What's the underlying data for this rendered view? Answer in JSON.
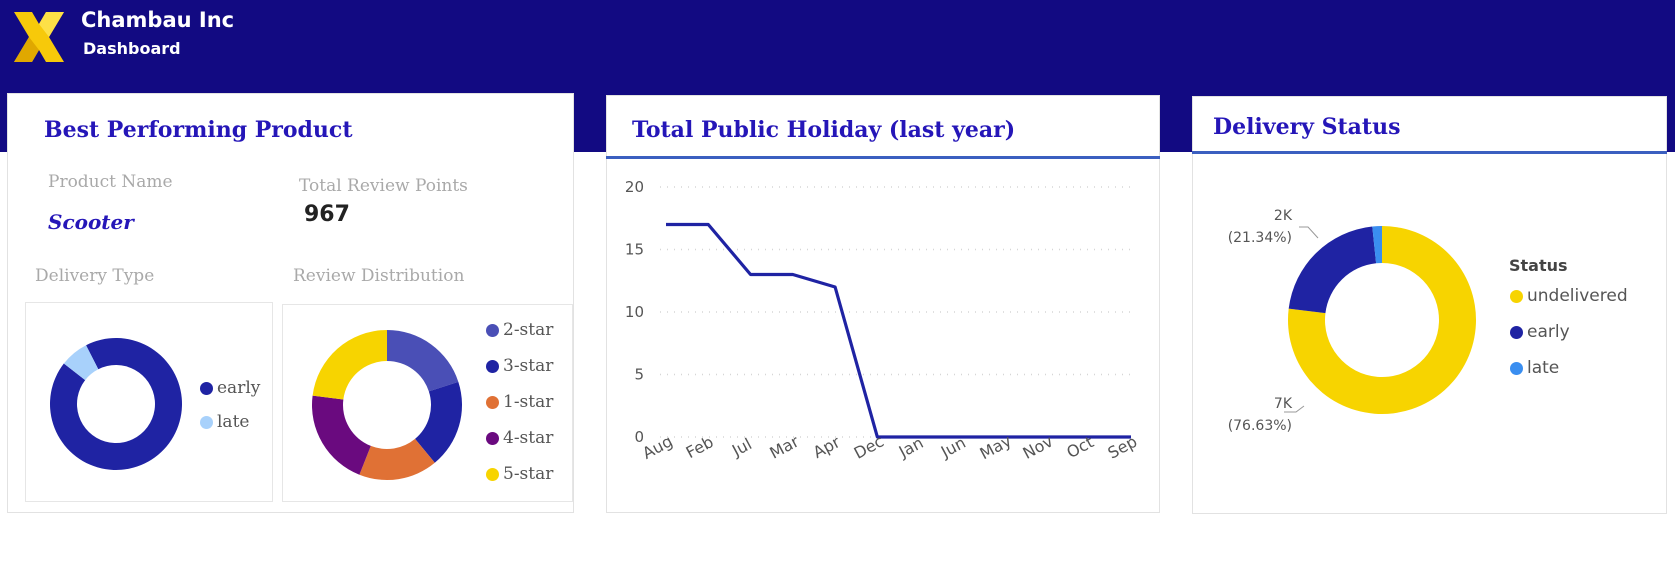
{
  "header": {
    "brand": "Chambau Inc",
    "page": "Dashboard"
  },
  "best_product": {
    "title": "Best Performing Product",
    "product_name_label": "Product Name",
    "product_name": "Scooter",
    "review_points_label": "Total Review Points",
    "review_points": "967",
    "delivery_type_label": "Delivery Type",
    "review_distribution_label": "Review Distribution"
  },
  "holiday": {
    "title": "Total Public Holiday (last year)"
  },
  "delivery": {
    "title": "Delivery Status",
    "legend_title": "Status"
  },
  "chart_data": [
    {
      "type": "pie",
      "name": "Delivery Type",
      "labels": [
        "early",
        "late"
      ],
      "values": [
        93,
        7
      ],
      "colors": [
        "#1f23a3",
        "#a8d1fb"
      ]
    },
    {
      "type": "pie",
      "name": "Review Distribution",
      "labels": [
        "2-star",
        "3-star",
        "1-star",
        "4-star",
        "5-star"
      ],
      "values": [
        20,
        19,
        17,
        21,
        23
      ],
      "colors": [
        "#4a4fb6",
        "#1f23a3",
        "#e07135",
        "#6a0a7f",
        "#f7d400"
      ]
    },
    {
      "type": "line",
      "title": "Total Public Holiday (last year)",
      "categories": [
        "Aug",
        "Feb",
        "Jul",
        "Mar",
        "Apr",
        "Dec",
        "Jan",
        "Jun",
        "May",
        "Nov",
        "Oct",
        "Sep"
      ],
      "values": [
        17,
        17,
        13,
        13,
        12,
        0,
        0,
        0,
        0,
        0,
        0,
        0
      ],
      "ylim": [
        0,
        20
      ],
      "yticks": [
        0,
        5,
        10,
        15,
        20
      ],
      "color": "#1f23a3"
    },
    {
      "type": "pie",
      "name": "Delivery Status",
      "legend_title": "Status",
      "labels": [
        "undelivered",
        "early",
        "late"
      ],
      "values": [
        7000,
        1950,
        150
      ],
      "percents": [
        "76.63%",
        "21.34%",
        ""
      ],
      "data_labels": [
        {
          "value": "7K",
          "pct": "(76.63%)"
        },
        {
          "value": "2K",
          "pct": "(21.34%)"
        }
      ],
      "colors": [
        "#f7d400",
        "#1f23a3",
        "#3a8ef0"
      ]
    }
  ]
}
